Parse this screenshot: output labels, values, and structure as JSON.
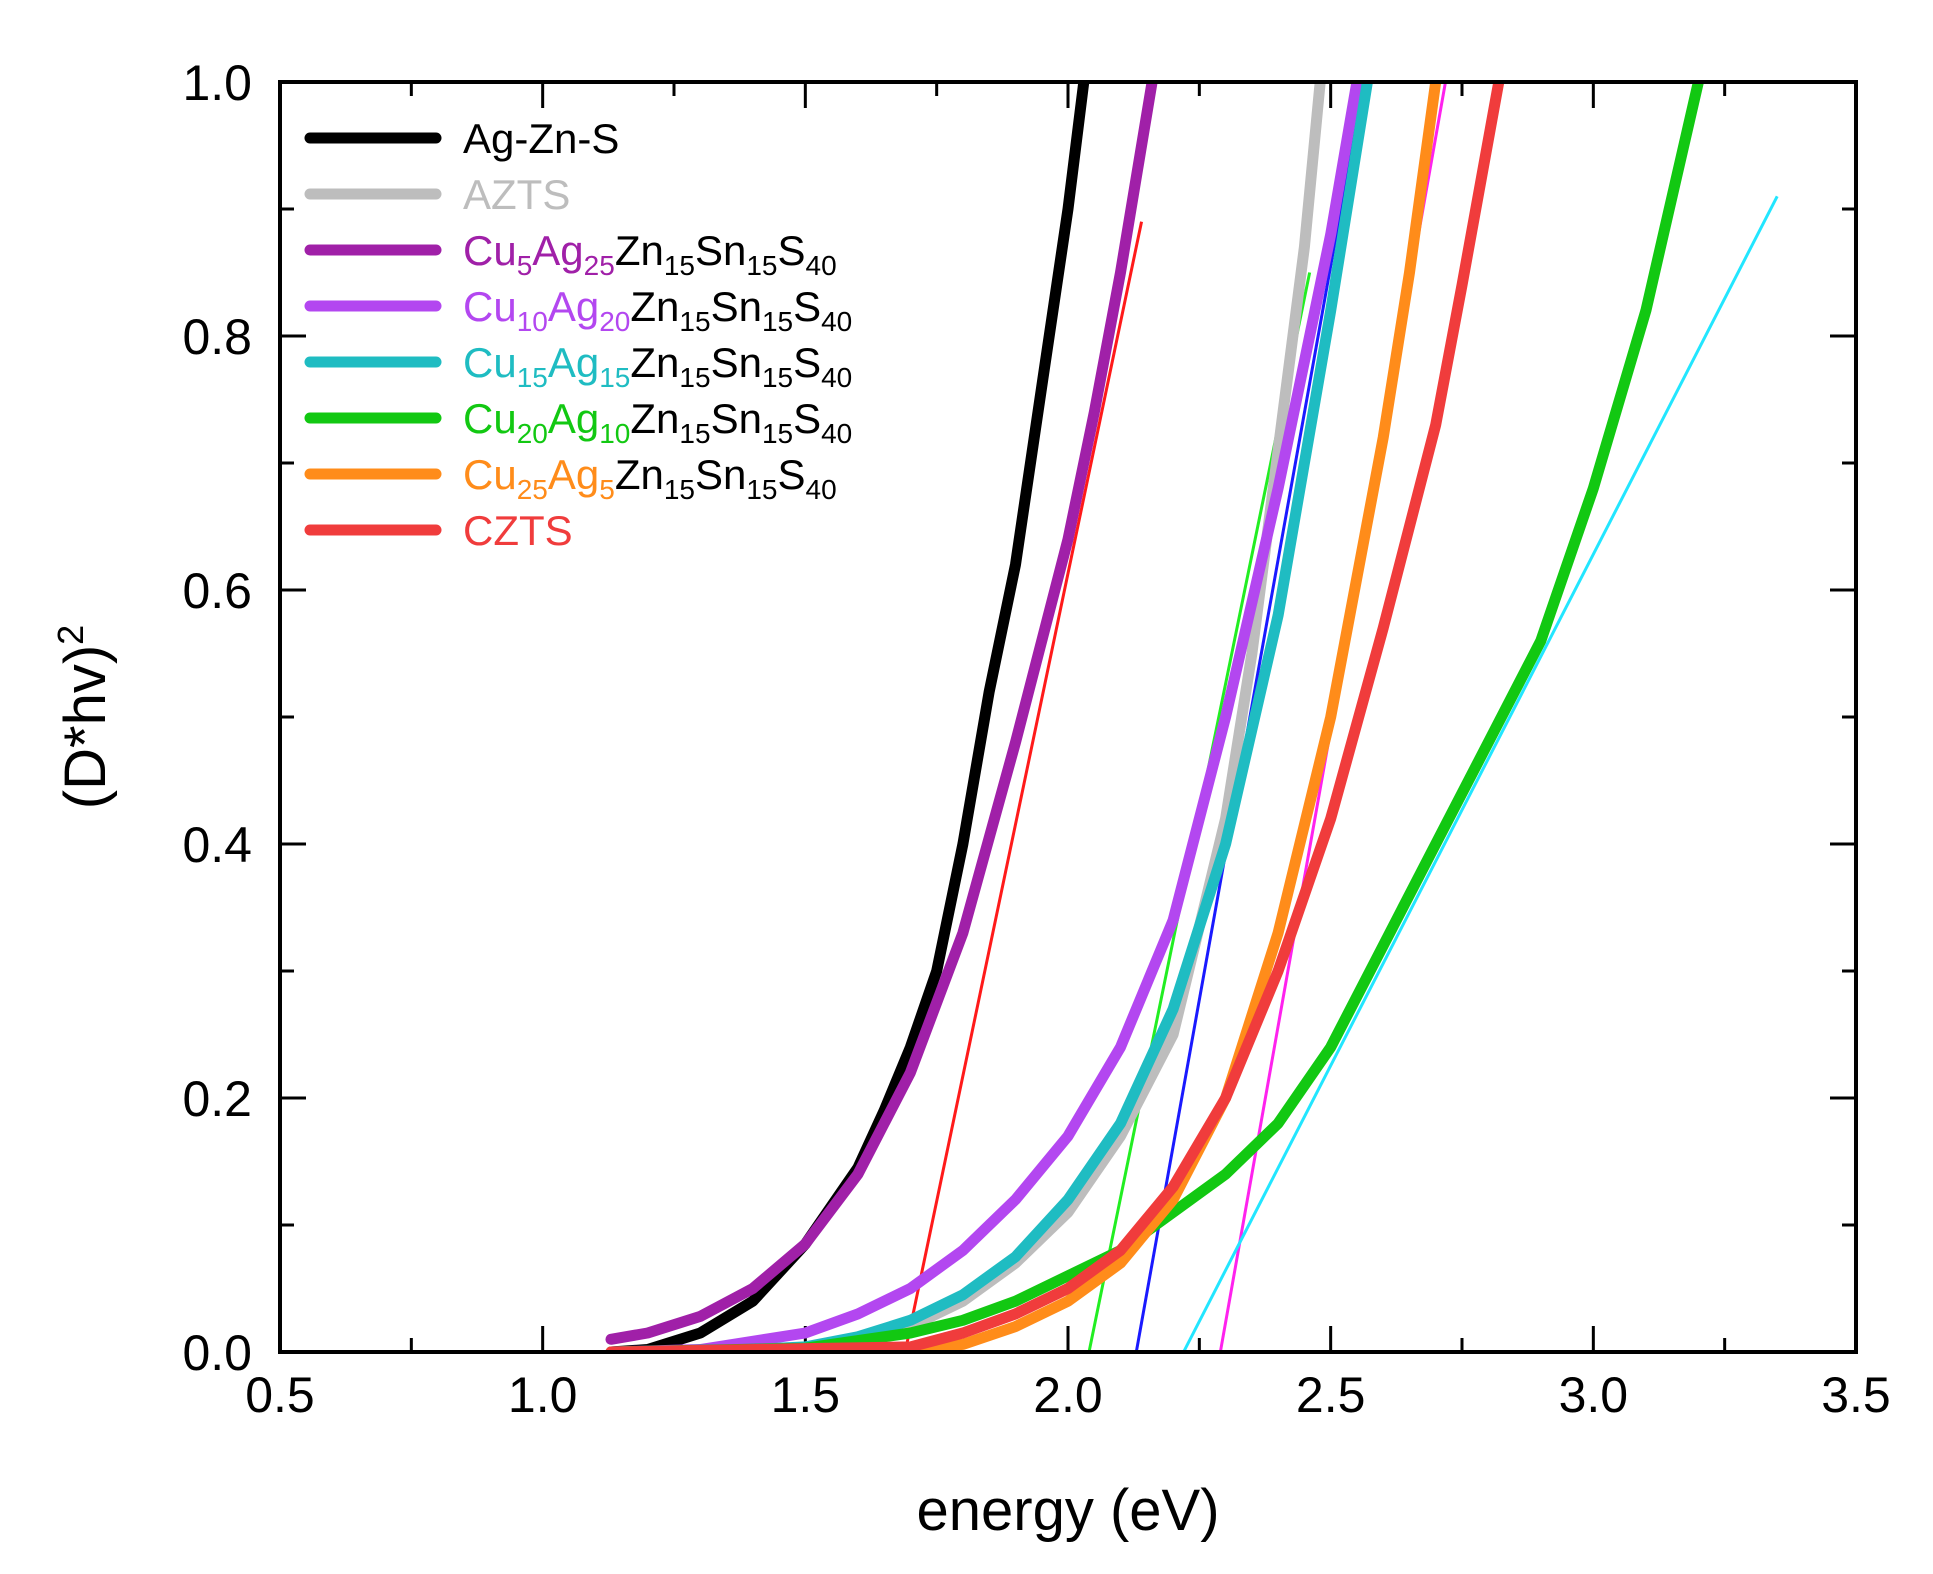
{
  "chart_data": {
    "type": "line",
    "title": "",
    "xlabel": "energy (eV)",
    "ylabel_main": "(D*hv)",
    "ylabel_sup": "2",
    "xlim": [
      0.5,
      3.5
    ],
    "ylim": [
      0.0,
      1.0
    ],
    "xticks": [
      "0.5",
      "1.0",
      "1.5",
      "2.0",
      "2.5",
      "3.0",
      "3.5"
    ],
    "xtick_values": [
      0.5,
      1.0,
      1.5,
      2.0,
      2.5,
      3.0,
      3.5
    ],
    "yticks": [
      "0.0",
      "0.2",
      "0.4",
      "0.6",
      "0.8",
      "1.0"
    ],
    "ytick_values": [
      0.0,
      0.2,
      0.4,
      0.6,
      0.8,
      1.0
    ],
    "legend_position": "top-left",
    "series": [
      {
        "name": "Ag-Zn-S",
        "legend": [
          {
            "t": "Ag-Zn-S"
          }
        ],
        "color": "#000000",
        "x": [
          1.13,
          1.2,
          1.3,
          1.4,
          1.5,
          1.6,
          1.65,
          1.7,
          1.75,
          1.8,
          1.85,
          1.9,
          1.95,
          2.0,
          2.03
        ],
        "y": [
          0.0,
          0.002,
          0.015,
          0.04,
          0.085,
          0.145,
          0.19,
          0.24,
          0.3,
          0.4,
          0.52,
          0.62,
          0.76,
          0.9,
          1.0
        ]
      },
      {
        "name": "AZTS",
        "legend": [
          {
            "t": "AZTS"
          }
        ],
        "color": "#bdbdbd",
        "x": [
          1.13,
          1.3,
          1.5,
          1.6,
          1.7,
          1.8,
          1.9,
          2.0,
          2.1,
          2.2,
          2.3,
          2.35,
          2.4,
          2.45,
          2.48
        ],
        "y": [
          0.0,
          0.0,
          0.002,
          0.008,
          0.02,
          0.04,
          0.07,
          0.11,
          0.17,
          0.25,
          0.42,
          0.55,
          0.71,
          0.87,
          1.0
        ]
      },
      {
        "name": "Cu5Ag25Zn15Sn15S40",
        "legend": [
          {
            "t": "Cu"
          },
          {
            "t": "5",
            "s": 1
          },
          {
            "t": "Ag"
          },
          {
            "t": "25",
            "s": 1
          },
          {
            "t": "Zn",
            "k": 1
          },
          {
            "t": "15",
            "s": 1,
            "k": 1
          },
          {
            "t": "Sn",
            "k": 1
          },
          {
            "t": "15",
            "s": 1,
            "k": 1
          },
          {
            "t": "S",
            "k": 1
          },
          {
            "t": "40",
            "s": 1,
            "k": 1
          }
        ],
        "color": "#a020a8",
        "x": [
          1.13,
          1.2,
          1.3,
          1.4,
          1.5,
          1.6,
          1.7,
          1.8,
          1.9,
          2.0,
          2.05,
          2.1,
          2.16
        ],
        "y": [
          0.01,
          0.015,
          0.028,
          0.05,
          0.085,
          0.14,
          0.22,
          0.33,
          0.48,
          0.64,
          0.74,
          0.85,
          1.0
        ]
      },
      {
        "name": "Cu10Ag20Zn15Sn15S40",
        "legend": [
          {
            "t": "Cu"
          },
          {
            "t": "10",
            "s": 1
          },
          {
            "t": "Ag"
          },
          {
            "t": "20",
            "s": 1
          },
          {
            "t": "Zn",
            "k": 1
          },
          {
            "t": "15",
            "s": 1,
            "k": 1
          },
          {
            "t": "Sn",
            "k": 1
          },
          {
            "t": "15",
            "s": 1,
            "k": 1
          },
          {
            "t": "S",
            "k": 1
          },
          {
            "t": "40",
            "s": 1,
            "k": 1
          }
        ],
        "color": "#b347f0",
        "x": [
          1.13,
          1.3,
          1.5,
          1.6,
          1.7,
          1.8,
          1.9,
          2.0,
          2.1,
          2.2,
          2.3,
          2.4,
          2.5,
          2.55
        ],
        "y": [
          0.0,
          0.002,
          0.015,
          0.03,
          0.05,
          0.08,
          0.12,
          0.17,
          0.24,
          0.34,
          0.5,
          0.68,
          0.88,
          1.0
        ]
      },
      {
        "name": "Cu15Ag15Zn15Sn15S40",
        "legend": [
          {
            "t": "Cu"
          },
          {
            "t": "15",
            "s": 1
          },
          {
            "t": "Ag"
          },
          {
            "t": "15",
            "s": 1
          },
          {
            "t": "Zn",
            "k": 1
          },
          {
            "t": "15",
            "s": 1,
            "k": 1
          },
          {
            "t": "Sn",
            "k": 1
          },
          {
            "t": "15",
            "s": 1,
            "k": 1
          },
          {
            "t": "S",
            "k": 1
          },
          {
            "t": "40",
            "s": 1,
            "k": 1
          }
        ],
        "color": "#1fbcc2",
        "x": [
          1.13,
          1.3,
          1.5,
          1.6,
          1.7,
          1.8,
          1.9,
          2.0,
          2.1,
          2.2,
          2.3,
          2.4,
          2.5,
          2.57
        ],
        "y": [
          0.0,
          0.0,
          0.004,
          0.012,
          0.025,
          0.045,
          0.075,
          0.12,
          0.18,
          0.27,
          0.4,
          0.58,
          0.82,
          1.0
        ]
      },
      {
        "name": "Cu20Ag10Zn15Sn15S40",
        "legend": [
          {
            "t": "Cu"
          },
          {
            "t": "20",
            "s": 1
          },
          {
            "t": "Ag"
          },
          {
            "t": "10",
            "s": 1
          },
          {
            "t": "Zn",
            "k": 1
          },
          {
            "t": "15",
            "s": 1,
            "k": 1
          },
          {
            "t": "Sn",
            "k": 1
          },
          {
            "t": "15",
            "s": 1,
            "k": 1
          },
          {
            "t": "S",
            "k": 1
          },
          {
            "t": "40",
            "s": 1,
            "k": 1
          }
        ],
        "color": "#12c812",
        "x": [
          1.13,
          1.5,
          1.7,
          1.8,
          1.9,
          2.0,
          2.1,
          2.2,
          2.3,
          2.4,
          2.5,
          2.6,
          2.7,
          2.8,
          2.9,
          3.0,
          3.1,
          3.2
        ],
        "y": [
          0.0,
          0.003,
          0.015,
          0.025,
          0.04,
          0.06,
          0.08,
          0.11,
          0.14,
          0.18,
          0.24,
          0.32,
          0.4,
          0.48,
          0.56,
          0.68,
          0.82,
          1.0
        ]
      },
      {
        "name": "Cu25Ag5Zn15Sn15S40",
        "legend": [
          {
            "t": "Cu"
          },
          {
            "t": "25",
            "s": 1
          },
          {
            "t": "Ag"
          },
          {
            "t": "5",
            "s": 1
          },
          {
            "t": "Zn",
            "k": 1
          },
          {
            "t": "15",
            "s": 1,
            "k": 1
          },
          {
            "t": "Sn",
            "k": 1
          },
          {
            "t": "15",
            "s": 1,
            "k": 1
          },
          {
            "t": "S",
            "k": 1
          },
          {
            "t": "40",
            "s": 1,
            "k": 1
          }
        ],
        "color": "#ff8c1a",
        "x": [
          1.13,
          1.6,
          1.8,
          1.9,
          2.0,
          2.1,
          2.2,
          2.3,
          2.4,
          2.5,
          2.6,
          2.65,
          2.7
        ],
        "y": [
          0.0,
          0.0,
          0.006,
          0.02,
          0.04,
          0.07,
          0.12,
          0.2,
          0.33,
          0.5,
          0.72,
          0.85,
          1.0
        ]
      },
      {
        "name": "CZTS",
        "legend": [
          {
            "t": "CZTS"
          }
        ],
        "color": "#f03c3c",
        "x": [
          1.13,
          1.7,
          1.8,
          1.9,
          2.0,
          2.1,
          2.2,
          2.3,
          2.4,
          2.5,
          2.6,
          2.7,
          2.75,
          2.82
        ],
        "y": [
          0.0,
          0.004,
          0.015,
          0.03,
          0.05,
          0.08,
          0.13,
          0.2,
          0.3,
          0.42,
          0.57,
          0.73,
          0.84,
          1.0
        ]
      }
    ],
    "fit_lines": [
      {
        "name": "Cu5Ag25Zn15Sn15S40 tangent",
        "color": "#ff1a1a",
        "x": [
          1.69,
          2.14
        ],
        "y": [
          0.0,
          0.89
        ]
      },
      {
        "name": "Cu10Ag20Zn15Sn15S40 tangent",
        "color": "#22ee22",
        "x": [
          2.04,
          2.46
        ],
        "y": [
          0.0,
          0.85
        ]
      },
      {
        "name": "AZTS tangent",
        "color": "#1a1aff",
        "x": [
          2.13,
          2.58
        ],
        "y": [
          0.0,
          1.04
        ]
      },
      {
        "name": "CZTS tangent",
        "color": "#ff22ee",
        "x": [
          2.29,
          2.74
        ],
        "y": [
          0.0,
          1.05
        ]
      },
      {
        "name": "Cu20Ag10Zn15Sn15S40 tangent",
        "color": "#22e6ff",
        "x": [
          2.22,
          3.35
        ],
        "y": [
          0.0,
          0.91
        ]
      }
    ]
  }
}
